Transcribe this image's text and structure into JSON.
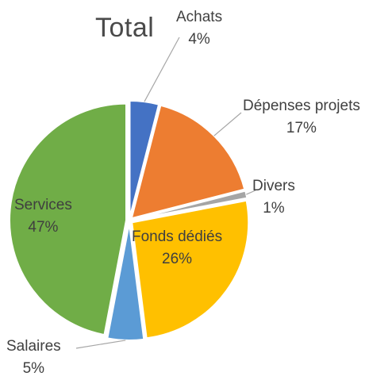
{
  "chart_data": {
    "type": "pie",
    "title": "Total",
    "slices": [
      {
        "name": "Achats",
        "value": 4,
        "label": "4%",
        "color": "#4472c4"
      },
      {
        "name": "Dépenses projets",
        "value": 17,
        "label": "17%",
        "color": "#ed7d31"
      },
      {
        "name": "Divers",
        "value": 1,
        "label": "1%",
        "color": "#a5a5a5"
      },
      {
        "name": "Fonds dédiés",
        "value": 26,
        "label": "26%",
        "color": "#ffc000"
      },
      {
        "name": "Salaires",
        "value": 5,
        "label": "5%",
        "color": "#5b9bd5"
      },
      {
        "name": "Services",
        "value": 47,
        "label": "47%",
        "color": "#70ad47"
      }
    ],
    "start_angle_deg": 0,
    "direction": "clockwise",
    "exploded": true,
    "legend": "none"
  }
}
